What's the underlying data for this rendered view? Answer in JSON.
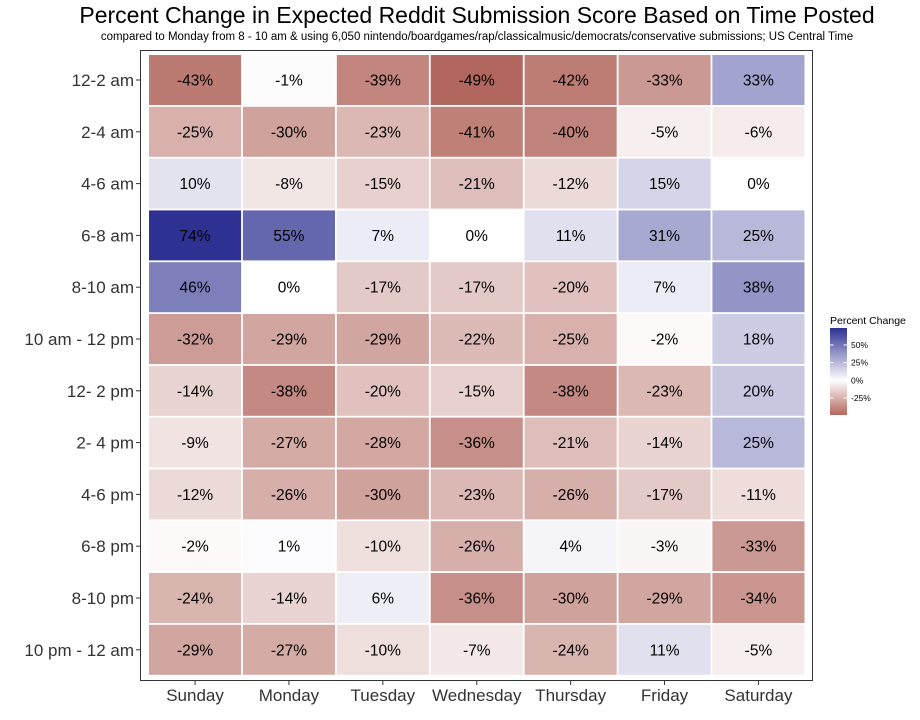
{
  "chart_data": {
    "type": "heatmap",
    "title": "Percent Change in Expected Reddit Submission Score Based on Time Posted",
    "subtitle": "compared to Monday from 8 - 10 am & using 6,050 nintendo/boardgames/rap/classicalmusic/democrats/conservative submissions; US Central Time",
    "x_categories": [
      "Sunday",
      "Monday",
      "Tuesday",
      "Wednesday",
      "Thursday",
      "Friday",
      "Saturday"
    ],
    "y_categories": [
      "12-2 am",
      "2-4 am",
      "4-6 am",
      "6-8 am",
      "8-10 am",
      "10 am - 12 pm",
      "12- 2 pm",
      "2- 4 pm",
      "4-6 pm",
      "6-8 pm",
      "8-10 pm",
      "10 pm - 12 am"
    ],
    "values": [
      [
        -43,
        -1,
        -39,
        -49,
        -42,
        -33,
        33
      ],
      [
        -25,
        -30,
        -23,
        -41,
        -40,
        -5,
        -6
      ],
      [
        10,
        -8,
        -15,
        -21,
        -12,
        15,
        0
      ],
      [
        74,
        55,
        7,
        0,
        11,
        31,
        25
      ],
      [
        46,
        0,
        -17,
        -17,
        -20,
        7,
        38
      ],
      [
        -32,
        -29,
        -29,
        -22,
        -25,
        -2,
        18
      ],
      [
        -14,
        -38,
        -20,
        -15,
        -38,
        -23,
        20
      ],
      [
        -9,
        -27,
        -28,
        -36,
        -21,
        -14,
        25
      ],
      [
        -12,
        -26,
        -30,
        -23,
        -26,
        -17,
        -11
      ],
      [
        -2,
        1,
        -10,
        -26,
        4,
        -3,
        -33
      ],
      [
        -24,
        -14,
        6,
        -36,
        -30,
        -29,
        -34
      ],
      [
        -29,
        -27,
        -10,
        -7,
        -24,
        11,
        -5
      ]
    ],
    "value_labels": [
      [
        "-43%",
        "-1%",
        "-39%",
        "-49%",
        "-42%",
        "-33%",
        "33%"
      ],
      [
        "-25%",
        "-30%",
        "-23%",
        "-41%",
        "-40%",
        "-5%",
        "-6%"
      ],
      [
        "10%",
        "-8%",
        "-15%",
        "-21%",
        "-12%",
        "15%",
        "0%"
      ],
      [
        "74%",
        "55%",
        "7%",
        "0%",
        "11%",
        "31%",
        "25%"
      ],
      [
        "46%",
        "0%",
        "-17%",
        "-17%",
        "-20%",
        "7%",
        "38%"
      ],
      [
        "-32%",
        "-29%",
        "-29%",
        "-22%",
        "-25%",
        "-2%",
        "18%"
      ],
      [
        "-14%",
        "-38%",
        "-20%",
        "-15%",
        "-38%",
        "-23%",
        "20%"
      ],
      [
        "-9%",
        "-27%",
        "-28%",
        "-36%",
        "-21%",
        "-14%",
        "25%"
      ],
      [
        "-12%",
        "-26%",
        "-30%",
        "-23%",
        "-26%",
        "-17%",
        "-11%"
      ],
      [
        "-2%",
        "1%",
        "-10%",
        "-26%",
        "4%",
        "-3%",
        "-33%"
      ],
      [
        "-24%",
        "-14%",
        "6%",
        "-36%",
        "-30%",
        "-29%",
        "-34%"
      ],
      [
        "-29%",
        "-27%",
        "-10%",
        "-7%",
        "-24%",
        "11%",
        "-5%"
      ]
    ],
    "legend": {
      "title": "Percent Change",
      "ticks": [
        {
          "value": 50,
          "label": "50%"
        },
        {
          "value": 25,
          "label": "25%"
        },
        {
          "value": 0,
          "label": "0%"
        },
        {
          "value": -25,
          "label": "-25%"
        }
      ],
      "range": [
        -49,
        74
      ],
      "placement": "right"
    },
    "colors": {
      "low": "#B2675E",
      "mid": "#FFFFFF",
      "high": "#2E3192"
    }
  }
}
